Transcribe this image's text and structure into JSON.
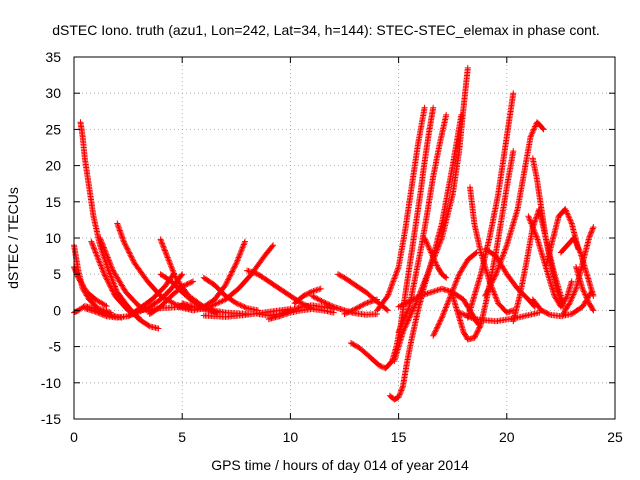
{
  "chart_data": {
    "type": "scatter",
    "title": "dSTEC Iono. truth (azu1, Lon=242, Lat=34, h=144): STEC-STEC_elemax in phase cont.",
    "xlabel": "GPS time / hours of day 014 of year 2014",
    "ylabel": "dSTEC  / TECUs",
    "xlim": [
      0,
      25
    ],
    "ylim": [
      -15,
      35
    ],
    "x_ticks": [
      0,
      5,
      10,
      15,
      20,
      25
    ],
    "y_ticks": [
      -15,
      -10,
      -5,
      0,
      5,
      10,
      15,
      20,
      25,
      30,
      35
    ],
    "grid": true,
    "marker": "+",
    "color": "#ff0000",
    "series": [
      {
        "x": [
          0.0,
          0.2,
          0.5,
          1.0,
          1.6,
          2.2
        ],
        "y": [
          -0.3,
          0.0,
          0.6,
          0.2,
          -0.6,
          -1.0
        ]
      },
      {
        "x": [
          0.0,
          0.2,
          0.4,
          0.7,
          1.1,
          1.7
        ],
        "y": [
          9.0,
          5.5,
          3.0,
          1.5,
          0.3,
          -0.3
        ]
      },
      {
        "x": [
          0.0,
          0.2,
          0.6,
          1.0,
          1.5
        ],
        "y": [
          6.0,
          4.5,
          2.5,
          1.5,
          0.6
        ]
      },
      {
        "x": [
          0.3,
          0.4,
          0.5,
          0.7,
          0.9,
          1.2,
          1.6,
          2.0,
          2.5,
          3.0,
          3.5,
          3.9
        ],
        "y": [
          26.0,
          24.0,
          21.0,
          17.0,
          13.0,
          9.0,
          5.5,
          2.5,
          0.5,
          -1.2,
          -2.2,
          -2.5
        ]
      },
      {
        "x": [
          0.8,
          1.0,
          1.4,
          1.9,
          2.5,
          3.0
        ],
        "y": [
          9.5,
          8.0,
          5.0,
          2.0,
          0.0,
          -1.0
        ]
      },
      {
        "x": [
          1.2,
          1.4,
          1.8,
          2.4,
          3.0,
          3.6
        ],
        "y": [
          10.0,
          8.5,
          5.5,
          2.5,
          0.6,
          -0.3
        ]
      },
      {
        "x": [
          2.0,
          2.3,
          2.8,
          3.4,
          4.0,
          4.7,
          5.3
        ],
        "y": [
          12.0,
          9.5,
          6.5,
          4.0,
          2.0,
          0.8,
          0.3
        ]
      },
      {
        "x": [
          0.5,
          1.0,
          1.5,
          2.0,
          2.5,
          3.0,
          3.5,
          4.0,
          4.5,
          5.0
        ],
        "y": [
          0.3,
          -0.2,
          -0.8,
          -1.0,
          -0.8,
          -0.2,
          0.5,
          1.5,
          3.0,
          5.0
        ]
      },
      {
        "x": [
          2.5,
          3.0,
          3.6,
          4.2,
          4.6
        ],
        "y": [
          -0.8,
          0.2,
          1.5,
          3.3,
          5.0
        ]
      },
      {
        "x": [
          4.0,
          4.3,
          4.7,
          5.3,
          6.0
        ],
        "y": [
          9.8,
          7.5,
          4.5,
          2.0,
          0.5
        ]
      },
      {
        "x": [
          4.0,
          4.5,
          5.0,
          5.5,
          6.0,
          6.6
        ],
        "y": [
          5.0,
          4.0,
          2.5,
          1.2,
          0.3,
          -0.3
        ]
      },
      {
        "x": [
          3.5,
          4.0,
          4.5,
          5.0,
          5.5
        ],
        "y": [
          -0.5,
          0.5,
          2.0,
          3.3,
          4.0
        ]
      },
      {
        "x": [
          3.0,
          4.0,
          5.0,
          6.0,
          7.0,
          8.0
        ],
        "y": [
          0.0,
          0.3,
          0.5,
          0.2,
          -0.3,
          -0.5
        ]
      },
      {
        "x": [
          5.0,
          5.5,
          6.0,
          6.5,
          7.0,
          7.5,
          7.9
        ],
        "y": [
          1.0,
          0.5,
          0.5,
          1.5,
          3.5,
          6.5,
          9.5
        ]
      },
      {
        "x": [
          4.8,
          5.5,
          6.2,
          7.0,
          7.6,
          8.2,
          8.8,
          9.2
        ],
        "y": [
          0.5,
          0.0,
          0.4,
          1.5,
          3.0,
          5.0,
          7.5,
          9.0
        ]
      },
      {
        "x": [
          6.0,
          6.5,
          7.0,
          7.5,
          8.0,
          8.5
        ],
        "y": [
          4.5,
          3.5,
          2.0,
          1.0,
          0.3,
          0.0
        ]
      },
      {
        "x": [
          6.0,
          7.0,
          8.0,
          9.0,
          10.0
        ],
        "y": [
          -0.7,
          -0.9,
          -0.6,
          -0.2,
          0.2
        ]
      },
      {
        "x": [
          8.0,
          8.5,
          9.0,
          9.5,
          10.0,
          10.5,
          11.0
        ],
        "y": [
          5.5,
          5.0,
          4.0,
          3.0,
          2.0,
          1.0,
          0.3
        ]
      },
      {
        "x": [
          8.5,
          9.0,
          9.5,
          10.0,
          10.5,
          11.0,
          11.5,
          12.0
        ],
        "y": [
          -0.5,
          -0.7,
          -0.5,
          0.0,
          0.5,
          0.7,
          0.5,
          0.2
        ]
      },
      {
        "x": [
          9.0,
          9.5,
          10.0,
          10.5,
          11.0,
          11.5,
          12.0
        ],
        "y": [
          -1.2,
          -0.8,
          -0.3,
          0.0,
          0.2,
          0.0,
          -0.3
        ]
      },
      {
        "x": [
          10.2,
          10.6,
          11.0,
          11.4
        ],
        "y": [
          1.0,
          2.0,
          2.6,
          3.0
        ]
      },
      {
        "x": [
          12.2,
          12.5,
          13.0,
          13.5,
          14.0,
          14.5
        ],
        "y": [
          5.0,
          4.5,
          3.5,
          2.5,
          1.2,
          0.0
        ]
      },
      {
        "x": [
          11.0,
          11.5,
          12.0,
          12.5,
          13.0,
          13.5,
          14.0
        ],
        "y": [
          2.0,
          1.2,
          0.5,
          0.0,
          -0.4,
          -0.6,
          -0.5
        ]
      },
      {
        "x": [
          12.5,
          13.0,
          13.5,
          14.0
        ],
        "y": [
          -0.5,
          0.2,
          1.0,
          1.5
        ]
      },
      {
        "x": [
          12.8,
          13.2,
          13.7,
          14.1,
          14.4,
          14.7,
          14.9,
          15.1,
          15.3,
          15.5,
          15.7,
          16.0,
          16.2,
          16.4,
          16.6
        ],
        "y": [
          -4.5,
          -5.2,
          -6.5,
          -7.6,
          -8.0,
          -7.0,
          -5.0,
          -2.0,
          2.0,
          6.0,
          10.0,
          16.0,
          20.5,
          24.5,
          28.0
        ]
      },
      {
        "x": [
          14.6,
          14.8,
          15.0,
          15.2,
          15.4,
          15.6,
          15.9,
          16.2,
          16.6,
          17.0,
          17.5,
          17.9
        ],
        "y": [
          -11.8,
          -12.3,
          -12.0,
          -10.5,
          -7.0,
          -4.0,
          0.0,
          3.5,
          7.5,
          12.0,
          20.0,
          27.0
        ]
      },
      {
        "x": [
          14.8,
          15.0,
          15.2,
          15.5,
          15.8,
          16.2,
          16.6,
          17.0,
          17.5,
          17.8,
          18.0,
          18.2
        ],
        "y": [
          -7.0,
          -5.0,
          -3.0,
          -1.0,
          1.0,
          4.0,
          7.0,
          10.0,
          16.0,
          22.0,
          28.0,
          33.5
        ]
      },
      {
        "x": [
          15.0,
          15.5,
          15.8,
          16.0,
          16.3,
          16.6,
          16.9,
          17.2
        ],
        "y": [
          -3.0,
          0.5,
          5.0,
          8.0,
          13.0,
          18.5,
          23.0,
          27.0
        ]
      },
      {
        "x": [
          16.2,
          16.5,
          16.8,
          17.0,
          17.2
        ],
        "y": [
          10.0,
          8.0,
          6.0,
          5.0,
          4.5
        ]
      },
      {
        "x": [
          14.0,
          14.5,
          15.0,
          15.3,
          15.6,
          15.9,
          16.2
        ],
        "y": [
          0.0,
          2.0,
          6.0,
          11.0,
          17.0,
          23.0,
          28.0
        ]
      },
      {
        "x": [
          15.0,
          16.0,
          17.0,
          17.5,
          18.0,
          18.2,
          18.5,
          18.7
        ],
        "y": [
          0.5,
          2.0,
          3.0,
          2.5,
          1.5,
          0.5,
          -1.0,
          -2.0
        ]
      },
      {
        "x": [
          17.5,
          17.8,
          18.0,
          18.2,
          18.5,
          18.8,
          19.1,
          19.5,
          20.0,
          20.3
        ],
        "y": [
          2.0,
          -1.0,
          -3.0,
          -4.0,
          -3.8,
          -2.0,
          2.0,
          8.0,
          17.0,
          22.0
        ]
      },
      {
        "x": [
          18.2,
          18.5,
          18.8,
          19.2,
          19.6,
          19.9,
          20.1,
          20.3
        ],
        "y": [
          -1.0,
          2.0,
          5.0,
          10.0,
          16.0,
          22.0,
          26.0,
          30.0
        ]
      },
      {
        "x": [
          16.6,
          17.0,
          17.4,
          17.8,
          18.2,
          18.6
        ],
        "y": [
          -3.5,
          -1.0,
          2.0,
          5.0,
          7.0,
          8.0
        ]
      },
      {
        "x": [
          18.3,
          18.5,
          18.8,
          19.2,
          19.6,
          20.0,
          20.3
        ],
        "y": [
          17.0,
          12.0,
          8.0,
          4.0,
          1.0,
          -0.3,
          0.0
        ]
      },
      {
        "x": [
          19.0,
          19.5,
          20.0,
          20.5,
          21.0,
          21.3
        ],
        "y": [
          8.5,
          7.5,
          5.0,
          3.0,
          1.5,
          0.5
        ]
      },
      {
        "x": [
          17.8,
          18.5,
          19.5,
          20.5,
          21.5
        ],
        "y": [
          -0.3,
          -1.2,
          -1.5,
          -1.0,
          -0.3
        ]
      },
      {
        "x": [
          19.0,
          19.5,
          20.0,
          20.5,
          20.8,
          21.1,
          21.4,
          21.7
        ],
        "y": [
          2.0,
          5.0,
          9.0,
          14.0,
          19.0,
          24.0,
          26.0,
          25.0
        ]
      },
      {
        "x": [
          20.3,
          20.6,
          20.9,
          21.2,
          21.5,
          21.8,
          22.2,
          22.6
        ],
        "y": [
          -1.5,
          2.0,
          6.5,
          11.5,
          14.0,
          10.0,
          5.0,
          1.0
        ]
      },
      {
        "x": [
          21.2,
          21.4,
          21.6,
          21.8,
          22.0,
          22.3,
          22.6
        ],
        "y": [
          21.0,
          18.0,
          14.0,
          10.0,
          7.0,
          3.0,
          0.5
        ]
      },
      {
        "x": [
          21.0,
          21.4,
          21.8,
          22.2,
          22.5,
          22.8,
          23.0
        ],
        "y": [
          13.0,
          10.0,
          6.0,
          2.0,
          0.5,
          2.0,
          4.0
        ]
      },
      {
        "x": [
          21.2,
          21.6,
          22.0,
          22.5,
          23.0,
          23.5,
          23.9
        ],
        "y": [
          1.5,
          0.0,
          -0.6,
          -0.8,
          -0.5,
          0.5,
          2.5
        ]
      },
      {
        "x": [
          21.8,
          22.1,
          22.4,
          22.7,
          23.0,
          23.3
        ],
        "y": [
          6.0,
          9.5,
          13.0,
          14.0,
          12.0,
          8.5
        ]
      },
      {
        "x": [
          22.5,
          22.8,
          23.1,
          23.4,
          23.7,
          24.0
        ],
        "y": [
          8.0,
          9.0,
          10.0,
          8.0,
          5.0,
          2.0
        ]
      },
      {
        "x": [
          22.6,
          22.9,
          23.2,
          23.5,
          23.8,
          24.0
        ],
        "y": [
          -0.5,
          1.0,
          3.0,
          6.5,
          10.0,
          11.5
        ]
      },
      {
        "x": [
          23.2,
          23.5,
          23.8,
          24.0
        ],
        "y": [
          6.0,
          3.0,
          1.0,
          0.0
        ]
      }
    ]
  }
}
